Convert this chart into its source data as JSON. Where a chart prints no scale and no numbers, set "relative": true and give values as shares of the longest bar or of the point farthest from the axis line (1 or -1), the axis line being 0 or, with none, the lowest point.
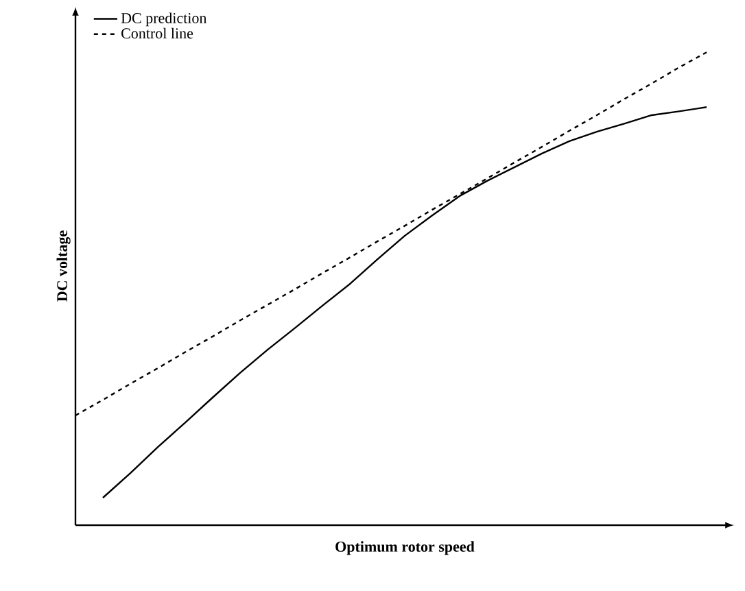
{
  "chart_data": {
    "type": "line",
    "relative": true,
    "xlabel": "Optimum rotor speed",
    "ylabel": "DC voltage",
    "categories": [
      null,
      null,
      null,
      null,
      null,
      null,
      null,
      null,
      null,
      null,
      null,
      null,
      null,
      null,
      null,
      null,
      null,
      null,
      null,
      null,
      null,
      null,
      null,
      null
    ],
    "series": [
      {
        "name": "DC prediction",
        "color": "#000000",
        "line_style": "solid",
        "values": [
          null,
          0.058,
          0.11,
          0.165,
          0.217,
          0.27,
          0.322,
          0.371,
          0.417,
          0.464,
          0.51,
          0.562,
          0.612,
          0.655,
          0.696,
          0.728,
          0.757,
          0.786,
          0.812,
          0.832,
          0.849,
          0.867,
          0.875,
          0.884
        ]
      },
      {
        "name": "Control line",
        "color": "#000000",
        "line_style": "dashed",
        "values": [
          0.232,
          0.265,
          0.299,
          0.332,
          0.366,
          0.399,
          0.433,
          0.466,
          0.499,
          0.533,
          0.566,
          0.6,
          0.633,
          0.667,
          0.7,
          0.733,
          0.767,
          0.8,
          0.834,
          0.867,
          0.901,
          0.934,
          0.968,
          1.0
        ]
      }
    ],
    "legend": "top left",
    "marker": "none"
  }
}
